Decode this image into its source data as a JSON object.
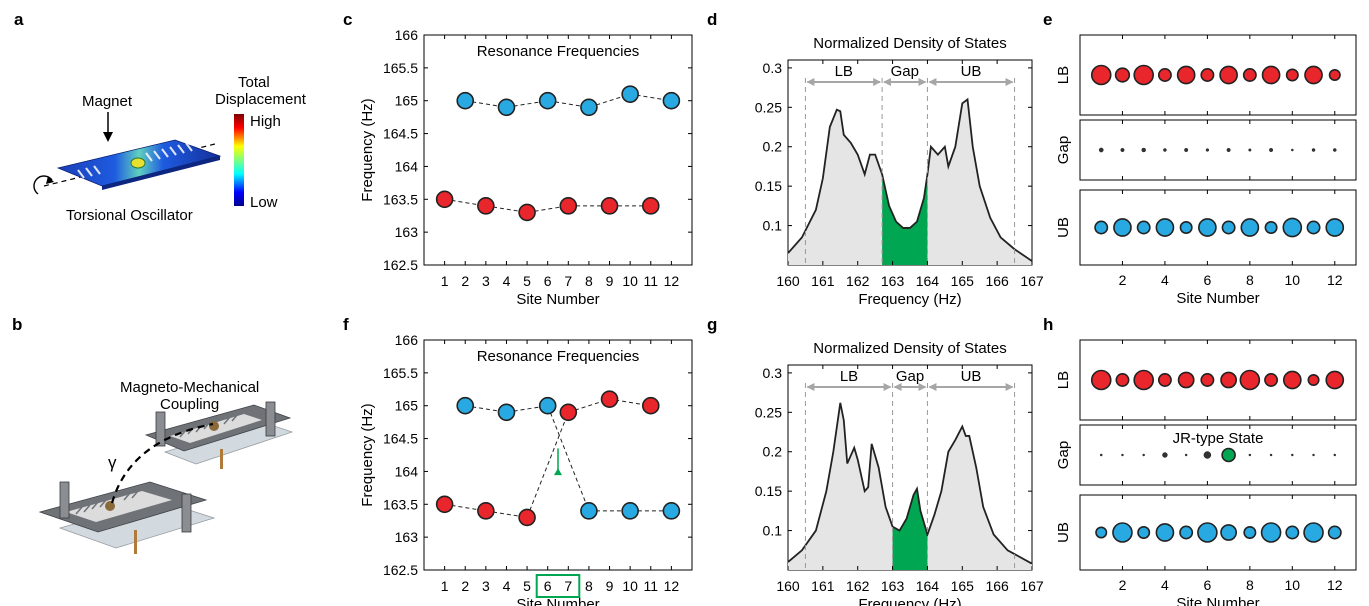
{
  "panel_labels": {
    "a": "a",
    "b": "b",
    "c": "c",
    "d": "d",
    "e": "e",
    "f": "f",
    "g": "g",
    "h": "h"
  },
  "panel_a": {
    "magnet_label": "Magnet",
    "legend_title_1": "Total",
    "legend_title_2": "Displacement",
    "legend_high": "High",
    "legend_low": "Low",
    "caption": "Torsional Oscillator"
  },
  "panel_b": {
    "title_1": "Magneto-Mechanical",
    "title_2": "Coupling",
    "gamma": "γ"
  },
  "panel_f_extra": {
    "highlight_sites": [
      6,
      7
    ],
    "arrow_site": 6.5,
    "arrow_from": 164.35,
    "arrow_to": 164.05
  },
  "panel_h_extra": {
    "annotation": "JR-type State"
  },
  "colors": {
    "red": "#e8262b",
    "blue": "#29a9e1",
    "green": "#00a651",
    "dos_fill": "#e5e5e5",
    "arrow_gray": "#a6a6a6"
  },
  "chart_data": [
    {
      "id": "c",
      "type": "scatter",
      "title": "Resonance Frequencies",
      "xlabel": "Site Number",
      "ylabel": "Frequency (Hz)",
      "xlim": [
        0,
        13
      ],
      "ylim": [
        162.5,
        166
      ],
      "xticks": [
        1,
        2,
        3,
        4,
        5,
        6,
        7,
        8,
        9,
        10,
        11,
        12
      ],
      "yticks": [
        "162.5",
        "163",
        "163.5",
        "164",
        "164.5",
        "165",
        "165.5",
        "166"
      ],
      "series": [
        {
          "color": "red",
          "x": [
            1,
            3,
            5,
            7,
            9,
            11
          ],
          "y": [
            163.5,
            163.4,
            163.3,
            163.4,
            163.4,
            163.4
          ]
        },
        {
          "color": "blue",
          "x": [
            2,
            4,
            6,
            8,
            10,
            12
          ],
          "y": [
            165.0,
            164.9,
            165.0,
            164.9,
            165.1,
            165.0
          ]
        }
      ]
    },
    {
      "id": "d",
      "type": "area",
      "title": "Normalized Density of States",
      "xlabel": "Frequency (Hz)",
      "ylabel": "",
      "xlim": [
        160,
        167
      ],
      "ylim": [
        0.05,
        0.31
      ],
      "xticks": [
        "160",
        "161",
        "162",
        "163",
        "164",
        "165",
        "166",
        "167"
      ],
      "yticks": [
        "0.1",
        "0.15",
        "0.2",
        "0.25",
        "0.3"
      ],
      "x": [
        160,
        160.4,
        160.8,
        161.0,
        161.2,
        161.4,
        161.5,
        161.6,
        161.8,
        162.0,
        162.2,
        162.35,
        162.5,
        162.7,
        162.9,
        163.1,
        163.3,
        163.5,
        163.7,
        163.9,
        164.0,
        164.1,
        164.3,
        164.5,
        164.6,
        164.8,
        165.0,
        165.15,
        165.3,
        165.5,
        165.8,
        166.1,
        166.5,
        167.0
      ],
      "y": [
        0.065,
        0.085,
        0.12,
        0.16,
        0.225,
        0.247,
        0.245,
        0.215,
        0.205,
        0.19,
        0.165,
        0.19,
        0.19,
        0.165,
        0.125,
        0.105,
        0.097,
        0.097,
        0.105,
        0.135,
        0.165,
        0.2,
        0.19,
        0.2,
        0.175,
        0.2,
        0.255,
        0.26,
        0.2,
        0.15,
        0.11,
        0.085,
        0.07,
        0.055
      ],
      "gap_range": [
        162.7,
        164.0
      ],
      "bands": [
        {
          "label": "LB",
          "from": 160.5,
          "to": 162.7,
          "color": "red"
        },
        {
          "label": "Gap",
          "from": 162.7,
          "to": 164.0,
          "color": "green"
        },
        {
          "label": "UB",
          "from": 164.0,
          "to": 166.5,
          "color": "blue"
        }
      ]
    },
    {
      "id": "e",
      "type": "scatter",
      "xlabel": "Site Number",
      "xlim": [
        0,
        13
      ],
      "xticks": [
        "2",
        "4",
        "6",
        "8",
        "10",
        "12"
      ],
      "rows": [
        {
          "label": "LB",
          "color": "red",
          "sizes": [
            1.0,
            0.72,
            1.0,
            0.65,
            0.9,
            0.65,
            0.9,
            0.65,
            0.9,
            0.6,
            0.9,
            0.55
          ]
        },
        {
          "label": "Gap",
          "color": "dark",
          "sizes": [
            0.3,
            0.25,
            0.28,
            0.22,
            0.25,
            0.2,
            0.25,
            0.18,
            0.25,
            0.15,
            0.22,
            0.22
          ]
        },
        {
          "label": "UB",
          "color": "blue",
          "sizes": [
            0.65,
            0.9,
            0.65,
            0.9,
            0.6,
            0.9,
            0.65,
            0.9,
            0.6,
            0.95,
            0.65,
            0.9
          ]
        }
      ]
    },
    {
      "id": "f",
      "type": "scatter",
      "title": "Resonance Frequencies",
      "xlabel": "Site Number",
      "ylabel": "Frequency (Hz)",
      "xlim": [
        0,
        13
      ],
      "ylim": [
        162.5,
        166
      ],
      "xticks": [
        1,
        2,
        3,
        4,
        5,
        6,
        7,
        8,
        9,
        10,
        11,
        12
      ],
      "yticks": [
        "162.5",
        "163",
        "163.5",
        "164",
        "164.5",
        "165",
        "165.5",
        "166"
      ],
      "series": [
        {
          "color": "red",
          "x": [
            1,
            3,
            5,
            7,
            9,
            11
          ],
          "y": [
            163.5,
            163.4,
            163.3,
            164.9,
            165.1,
            165.0
          ]
        },
        {
          "color": "blue",
          "x": [
            2,
            4,
            6,
            8,
            10,
            12
          ],
          "y": [
            165.0,
            164.9,
            165.0,
            163.4,
            163.4,
            163.4
          ]
        }
      ],
      "lines": [
        {
          "x": [
            1,
            3,
            5,
            7
          ],
          "y": [
            163.5,
            163.4,
            163.3,
            164.9
          ]
        },
        {
          "x": [
            2,
            4,
            6,
            8
          ],
          "y": [
            165.0,
            164.9,
            165.0,
            163.4
          ]
        },
        {
          "x": [
            7,
            9,
            11
          ],
          "y": [
            164.9,
            165.1,
            165.0
          ]
        },
        {
          "x": [
            8,
            10,
            12
          ],
          "y": [
            163.4,
            163.4,
            163.4
          ]
        }
      ]
    },
    {
      "id": "g",
      "type": "area",
      "title": "Normalized Density of States",
      "xlabel": "Frequency (Hz)",
      "ylabel": "",
      "xlim": [
        160,
        167
      ],
      "ylim": [
        0.05,
        0.31
      ],
      "xticks": [
        "160",
        "161",
        "162",
        "163",
        "164",
        "165",
        "166",
        "167"
      ],
      "yticks": [
        "0.1",
        "0.15",
        "0.2",
        "0.25",
        "0.3"
      ],
      "x": [
        160,
        160.4,
        160.8,
        161.1,
        161.3,
        161.5,
        161.6,
        161.7,
        161.9,
        162.0,
        162.2,
        162.3,
        162.4,
        162.6,
        162.8,
        163.0,
        163.2,
        163.4,
        163.6,
        163.7,
        163.8,
        164.0,
        164.2,
        164.4,
        164.6,
        164.8,
        165.0,
        165.1,
        165.2,
        165.4,
        165.6,
        165.9,
        166.3,
        167.0
      ],
      "y": [
        0.06,
        0.075,
        0.1,
        0.15,
        0.2,
        0.262,
        0.24,
        0.185,
        0.205,
        0.19,
        0.15,
        0.155,
        0.21,
        0.18,
        0.13,
        0.105,
        0.1,
        0.115,
        0.145,
        0.153,
        0.125,
        0.095,
        0.12,
        0.15,
        0.2,
        0.215,
        0.232,
        0.22,
        0.22,
        0.18,
        0.13,
        0.095,
        0.075,
        0.058
      ],
      "gap_range": [
        163.0,
        164.0
      ],
      "bands": [
        {
          "label": "LB",
          "from": 160.5,
          "to": 163.0,
          "color": "red"
        },
        {
          "label": "Gap",
          "from": 163.0,
          "to": 164.0,
          "color": "green"
        },
        {
          "label": "UB",
          "from": 164.0,
          "to": 166.5,
          "color": "blue"
        }
      ]
    },
    {
      "id": "h",
      "type": "scatter",
      "xlabel": "Site Number",
      "xlim": [
        0,
        13
      ],
      "xticks": [
        "2",
        "4",
        "6",
        "8",
        "10",
        "12"
      ],
      "rows": [
        {
          "label": "LB",
          "color": "red",
          "sizes": [
            1.0,
            0.65,
            1.0,
            0.65,
            0.8,
            0.65,
            0.8,
            1.0,
            0.65,
            0.9,
            0.55,
            0.9
          ]
        },
        {
          "label": "Gap",
          "color": "dark",
          "sizes": [
            0.15,
            0.12,
            0.12,
            0.35,
            0.1,
            0.5,
            0.8,
            0.12,
            0.12,
            0.12,
            0.12,
            0.12
          ],
          "highlight_index": 6
        },
        {
          "label": "UB",
          "color": "blue",
          "sizes": [
            0.55,
            1.0,
            0.6,
            0.9,
            0.65,
            1.0,
            0.8,
            0.6,
            1.0,
            0.65,
            1.0,
            0.65
          ]
        }
      ]
    }
  ]
}
